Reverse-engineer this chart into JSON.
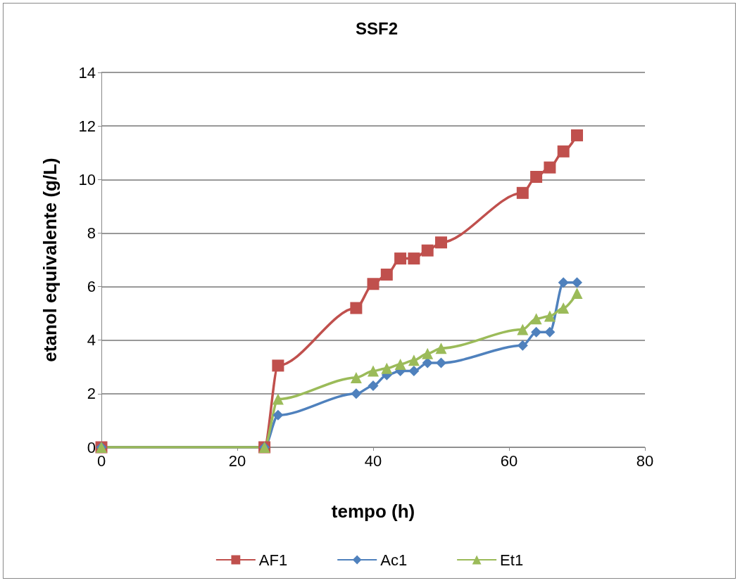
{
  "chart_data": {
    "type": "line",
    "title": "SSF2",
    "xlabel": "tempo (h)",
    "ylabel": "etanol equivalente (g/L)",
    "x": [
      0,
      24,
      26,
      37.5,
      40,
      42,
      44,
      46,
      48,
      50,
      62,
      64,
      66,
      68,
      70
    ],
    "series": [
      {
        "name": "AF1",
        "color": "#c0504d",
        "marker": "square",
        "values": [
          0,
          0,
          3.05,
          5.2,
          6.1,
          6.45,
          7.05,
          7.05,
          7.35,
          7.65,
          9.5,
          10.1,
          10.45,
          11.05,
          11.65
        ]
      },
      {
        "name": "Ac1",
        "color": "#4f81bd",
        "marker": "diamond",
        "values": [
          0,
          0,
          1.2,
          2.0,
          2.3,
          2.7,
          2.85,
          2.85,
          3.15,
          3.15,
          3.8,
          4.3,
          4.3,
          6.15,
          6.15
        ]
      },
      {
        "name": "Et1",
        "color": "#9bbb59",
        "marker": "triangle",
        "values": [
          0,
          0,
          1.8,
          2.6,
          2.85,
          2.95,
          3.1,
          3.25,
          3.5,
          3.7,
          4.4,
          4.8,
          4.9,
          5.2,
          5.75
        ]
      }
    ],
    "xlim": [
      0,
      80
    ],
    "xticks": [
      0,
      20,
      40,
      60,
      80
    ],
    "ylim": [
      0,
      14
    ],
    "yticks": [
      0,
      2,
      4,
      6,
      8,
      10,
      12,
      14
    ],
    "grid": "y",
    "legend": "bottom"
  }
}
